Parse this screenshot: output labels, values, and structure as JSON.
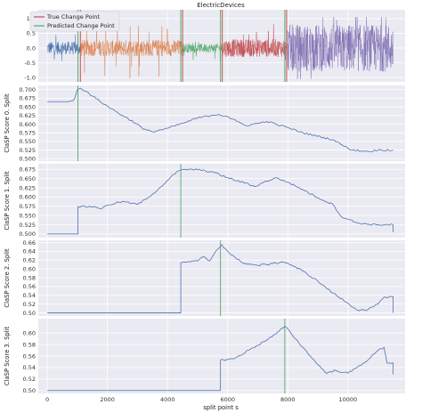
{
  "chart_data": {
    "type": "line",
    "title": "ElectricDevices",
    "xlabel": "split point s",
    "xlim": [
      -300,
      11900
    ],
    "xticks": [
      0,
      2000,
      4000,
      6000,
      8000,
      10000
    ],
    "colors": {
      "true_cp": "#c44e52",
      "pred_cp": "#55a868",
      "score": "#4c72b0",
      "grid": "#ffffff",
      "bg": "#eaeaf2"
    },
    "legend": {
      "position": "top-left",
      "entries": [
        {
          "label": "True Change Point",
          "color": "#c44e52"
        },
        {
          "label": "Predicted Change Point",
          "color": "#55a868"
        }
      ]
    },
    "true_change_points": [
      1100,
      4500,
      5820,
      7960
    ],
    "predicted_change_points": [
      1020,
      4440,
      5760,
      7900
    ],
    "time_series": {
      "ylim": [
        -1.15,
        1.3
      ],
      "yticks": [
        -1.0,
        -0.5,
        0.0,
        0.5,
        1.0
      ],
      "segments": [
        {
          "start": 0,
          "end": 1100,
          "color": "#4c72b0",
          "amp": 0.22,
          "spike": 0.35
        },
        {
          "start": 1100,
          "end": 4500,
          "color": "#dd8452",
          "amp": 0.28,
          "spike": 0.75
        },
        {
          "start": 4500,
          "end": 5820,
          "color": "#55a868",
          "amp": 0.15,
          "spike": 0.3
        },
        {
          "start": 5820,
          "end": 7960,
          "color": "#c44e52",
          "amp": 0.3,
          "spike": 0.55
        },
        {
          "start": 7960,
          "end": 11500,
          "color": "#8172b3",
          "amp": 0.8,
          "spike": 1.0
        }
      ]
    },
    "panels": [
      {
        "ylabel": "ClaSP Score 0. Split",
        "ylim": [
          0.493,
          0.712
        ],
        "yticks": [
          0.5,
          0.525,
          0.55,
          0.575,
          0.6,
          0.625,
          0.65,
          0.675,
          0.7
        ],
        "tick_labels": [
          "0.500",
          "0.525",
          "0.550",
          "0.575",
          "0.600",
          "0.625",
          "0.650",
          "0.675",
          "0.700"
        ],
        "change_point": 1020,
        "points": [
          [
            0,
            0.665
          ],
          [
            700,
            0.665
          ],
          [
            900,
            0.672
          ],
          [
            1000,
            0.7
          ],
          [
            1100,
            0.704
          ],
          [
            1300,
            0.695
          ],
          [
            1500,
            0.681
          ],
          [
            2000,
            0.652
          ],
          [
            2500,
            0.625
          ],
          [
            3000,
            0.6
          ],
          [
            3200,
            0.585
          ],
          [
            3500,
            0.578
          ],
          [
            4000,
            0.588
          ],
          [
            4500,
            0.602
          ],
          [
            5000,
            0.618
          ],
          [
            5500,
            0.626
          ],
          [
            5700,
            0.628
          ],
          [
            6000,
            0.622
          ],
          [
            6300,
            0.608
          ],
          [
            6600,
            0.596
          ],
          [
            7000,
            0.602
          ],
          [
            7300,
            0.608
          ],
          [
            7600,
            0.6
          ],
          [
            8000,
            0.59
          ],
          [
            8500,
            0.575
          ],
          [
            9000,
            0.565
          ],
          [
            9500,
            0.555
          ],
          [
            9800,
            0.54
          ],
          [
            10000,
            0.53
          ],
          [
            10200,
            0.525
          ],
          [
            10500,
            0.522
          ],
          [
            10700,
            0.521
          ],
          [
            11000,
            0.525
          ],
          [
            11500,
            0.525
          ]
        ]
      },
      {
        "ylabel": "ClaSP Score 1. Split",
        "ylim": [
          0.49,
          0.69
        ],
        "yticks": [
          0.5,
          0.525,
          0.55,
          0.575,
          0.6,
          0.625,
          0.65,
          0.675
        ],
        "tick_labels": [
          "0.500",
          "0.525",
          "0.550",
          "0.575",
          "0.600",
          "0.625",
          "0.650",
          "0.675"
        ],
        "change_point": 4440,
        "points": [
          [
            0,
            0.5
          ],
          [
            1020,
            0.5
          ],
          [
            1020,
            0.574
          ],
          [
            1600,
            0.574
          ],
          [
            1800,
            0.568
          ],
          [
            2000,
            0.578
          ],
          [
            2500,
            0.588
          ],
          [
            3000,
            0.58
          ],
          [
            3300,
            0.595
          ],
          [
            3700,
            0.622
          ],
          [
            4000,
            0.645
          ],
          [
            4300,
            0.668
          ],
          [
            4600,
            0.675
          ],
          [
            5000,
            0.674
          ],
          [
            5500,
            0.668
          ],
          [
            6000,
            0.652
          ],
          [
            6300,
            0.644
          ],
          [
            6600,
            0.638
          ],
          [
            6900,
            0.628
          ],
          [
            7200,
            0.64
          ],
          [
            7600,
            0.652
          ],
          [
            8000,
            0.64
          ],
          [
            8500,
            0.62
          ],
          [
            9000,
            0.598
          ],
          [
            9500,
            0.58
          ],
          [
            9800,
            0.545
          ],
          [
            10000,
            0.54
          ],
          [
            10300,
            0.53
          ],
          [
            10700,
            0.526
          ],
          [
            11000,
            0.525
          ],
          [
            11500,
            0.525
          ],
          [
            11500,
            0.505
          ]
        ]
      },
      {
        "ylabel": "ClaSP Score 2. Split",
        "ylim": [
          0.493,
          0.665
        ],
        "yticks": [
          0.5,
          0.52,
          0.54,
          0.56,
          0.58,
          0.6,
          0.62,
          0.64,
          0.66
        ],
        "tick_labels": [
          "0.50",
          "0.52",
          "0.54",
          "0.56",
          "0.58",
          "0.60",
          "0.62",
          "0.64",
          "0.66"
        ],
        "change_point": 5760,
        "points": [
          [
            0,
            0.5
          ],
          [
            4440,
            0.5
          ],
          [
            4440,
            0.614
          ],
          [
            5000,
            0.618
          ],
          [
            5200,
            0.628
          ],
          [
            5400,
            0.618
          ],
          [
            5600,
            0.64
          ],
          [
            5800,
            0.655
          ],
          [
            6000,
            0.64
          ],
          [
            6300,
            0.622
          ],
          [
            6600,
            0.612
          ],
          [
            7000,
            0.608
          ],
          [
            7500,
            0.612
          ],
          [
            7800,
            0.616
          ],
          [
            8000,
            0.613
          ],
          [
            8500,
            0.595
          ],
          [
            9000,
            0.572
          ],
          [
            9500,
            0.545
          ],
          [
            10000,
            0.522
          ],
          [
            10300,
            0.507
          ],
          [
            10600,
            0.505
          ],
          [
            11000,
            0.52
          ],
          [
            11200,
            0.536
          ],
          [
            11500,
            0.537
          ],
          [
            11500,
            0.5
          ]
        ]
      },
      {
        "ylabel": "ClaSP Score 3. Split",
        "ylim": [
          0.495,
          0.625
        ],
        "yticks": [
          0.5,
          0.52,
          0.54,
          0.56,
          0.58,
          0.6
        ],
        "tick_labels": [
          "0.50",
          "0.52",
          "0.54",
          "0.56",
          "0.58",
          "0.60"
        ],
        "change_point": 7900,
        "points": [
          [
            0,
            0.5
          ],
          [
            5760,
            0.5
          ],
          [
            5760,
            0.553
          ],
          [
            6200,
            0.555
          ],
          [
            6700,
            0.57
          ],
          [
            7200,
            0.585
          ],
          [
            7600,
            0.598
          ],
          [
            7900,
            0.612
          ],
          [
            8100,
            0.6
          ],
          [
            8500,
            0.575
          ],
          [
            9000,
            0.545
          ],
          [
            9300,
            0.53
          ],
          [
            9600,
            0.535
          ],
          [
            10000,
            0.53
          ],
          [
            10300,
            0.54
          ],
          [
            10700,
            0.555
          ],
          [
            11000,
            0.57
          ],
          [
            11200,
            0.575
          ],
          [
            11300,
            0.548
          ],
          [
            11500,
            0.548
          ],
          [
            11500,
            0.528
          ]
        ]
      }
    ]
  }
}
